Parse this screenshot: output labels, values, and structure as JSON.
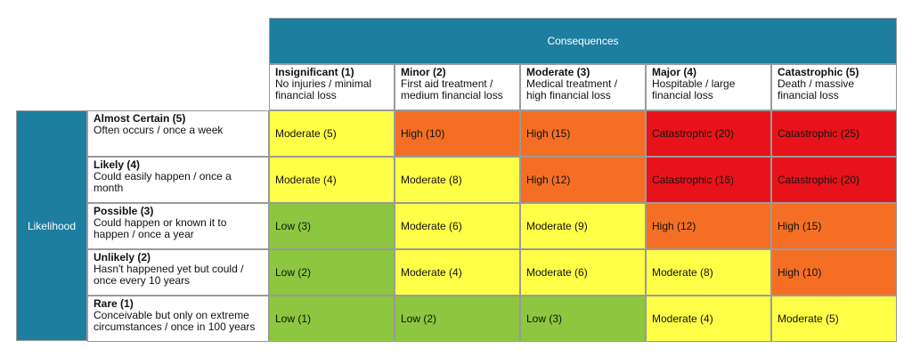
{
  "header": {
    "consequences_label": "Consequences",
    "likelihood_label": "Likelihood"
  },
  "columns": [
    {
      "title": "Insignificant (1)",
      "description": "No injuries / minimal financial loss"
    },
    {
      "title": "Minor (2)",
      "description": "First aid treatment / medium financial loss"
    },
    {
      "title": "Moderate (3)",
      "description": "Medical treatment / high financial loss"
    },
    {
      "title": "Major (4)",
      "description": "Hospitable / large financial loss"
    },
    {
      "title": "Catastrophic (5)",
      "description": "Death / massive financial loss"
    }
  ],
  "rows": [
    {
      "title": "Almost Certain (5)",
      "description": "Often occurs / once a week",
      "cells": [
        {
          "text": "Moderate (5)",
          "color": "#ffff47"
        },
        {
          "text": "High (10)",
          "color": "#f46f24"
        },
        {
          "text": "High (15)",
          "color": "#f46f24"
        },
        {
          "text": "Catastrophic (20)",
          "color": "#e8131a"
        },
        {
          "text": "Catastrophic (25)",
          "color": "#e8131a"
        }
      ]
    },
    {
      "title": "Likely (4)",
      "description": "Could easily happen / once a month",
      "cells": [
        {
          "text": "Moderate (4)",
          "color": "#ffff47"
        },
        {
          "text": "Moderate (8)",
          "color": "#ffff47"
        },
        {
          "text": "High (12)",
          "color": "#f46f24"
        },
        {
          "text": "Catastrophic (16)",
          "color": "#e8131a"
        },
        {
          "text": "Catastrophic (20)",
          "color": "#e8131a"
        }
      ]
    },
    {
      "title": "Possible (3)",
      "description": "Could happen or known it to happen / once a year",
      "cells": [
        {
          "text": "Low (3)",
          "color": "#8dc63f"
        },
        {
          "text": "Moderate (6)",
          "color": "#ffff47"
        },
        {
          "text": "Moderate (9)",
          "color": "#ffff47"
        },
        {
          "text": "High (12)",
          "color": "#f46f24"
        },
        {
          "text": "High (15)",
          "color": "#f46f24"
        }
      ]
    },
    {
      "title": "Unlikely (2)",
      "description": "Hasn't happened yet but could / once every 10 years",
      "cells": [
        {
          "text": "Low (2)",
          "color": "#8dc63f"
        },
        {
          "text": "Moderate (4)",
          "color": "#ffff47"
        },
        {
          "text": "Moderate (6)",
          "color": "#ffff47"
        },
        {
          "text": "Moderate (8)",
          "color": "#ffff47"
        },
        {
          "text": "High (10)",
          "color": "#f46f24"
        }
      ]
    },
    {
      "title": "Rare (1)",
      "description": "Conceivable but only on extreme circumstances / once in 100 years",
      "cells": [
        {
          "text": "Low (1)",
          "color": "#8dc63f"
        },
        {
          "text": "Low (2)",
          "color": "#8dc63f"
        },
        {
          "text": "Low (3)",
          "color": "#8dc63f"
        },
        {
          "text": "Moderate (4)",
          "color": "#ffff47"
        },
        {
          "text": "Moderate (5)",
          "color": "#ffff47"
        }
      ]
    }
  ]
}
